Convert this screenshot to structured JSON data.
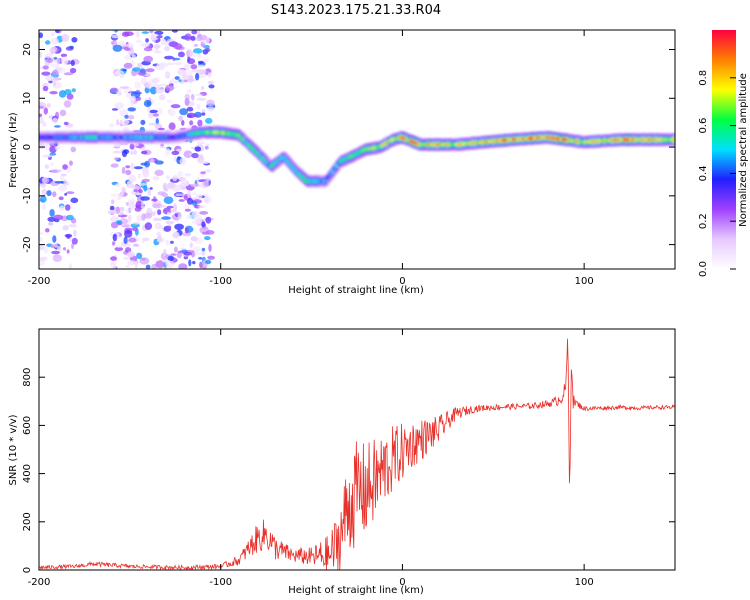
{
  "chart_data": [
    {
      "type": "heatmap",
      "title": "S143.2023.175.21.33.R04",
      "xlabel": "Height of straight line (km)",
      "ylabel": "Frequency (Hz)",
      "xlim": [
        -200,
        150
      ],
      "ylim": [
        -25,
        24
      ],
      "xticks": [
        -200,
        -100,
        0,
        100
      ],
      "yticks": [
        -20,
        -10,
        0,
        10,
        20
      ],
      "colorbar": {
        "label": "Normalized spectral amplitude",
        "range": [
          0,
          1
        ],
        "ticks": [
          0.0,
          0.2,
          0.4,
          0.6,
          0.8
        ],
        "colors": [
          "#ffffff",
          "#e6c8ff",
          "#a040ff",
          "#2020ff",
          "#00e0ff",
          "#00ff40",
          "#ffff00",
          "#ff8000",
          "#ff0040"
        ]
      },
      "trace": {
        "x": [
          -200,
          -185,
          -170,
          -155,
          -140,
          -125,
          -110,
          -100,
          -90,
          -80,
          -72,
          -65,
          -58,
          -52,
          -46,
          -42,
          -38,
          -34,
          -28,
          -20,
          -12,
          -5,
          0,
          10,
          30,
          60,
          80,
          90,
          100,
          120,
          150
        ],
        "freq": [
          2,
          2,
          2,
          2,
          2,
          2,
          3,
          3,
          2.5,
          -1,
          -4,
          -2,
          -5,
          -7,
          -7,
          -7,
          -5,
          -3,
          -2,
          -0.5,
          0,
          1.5,
          2,
          0.5,
          0.5,
          1.5,
          2,
          1.5,
          1,
          1.5,
          1.5
        ],
        "peak_amplitude": [
          0.3,
          0.4,
          0.5,
          0.35,
          0.5,
          0.3,
          0.6,
          0.7,
          0.6,
          0.55,
          0.5,
          0.5,
          0.5,
          0.5,
          0.45,
          0.4,
          0.45,
          0.5,
          0.55,
          0.6,
          0.7,
          0.75,
          0.8,
          0.85,
          0.7,
          0.9,
          0.85,
          0.9,
          0.7,
          0.85,
          0.7
        ]
      },
      "noise_bands": [
        [
          -200,
          -180
        ],
        [
          -160,
          -105
        ]
      ]
    },
    {
      "type": "line",
      "xlabel": "Height of straight line (km)",
      "ylabel": "SNR (10 * v/v)",
      "xlim": [
        -200,
        150
      ],
      "ylim": [
        0,
        1000
      ],
      "xticks": [
        -200,
        -100,
        0,
        100
      ],
      "yticks": [
        0,
        200,
        400,
        600,
        800
      ],
      "color": "#e8302a",
      "series": [
        {
          "name": "SNR",
          "x": [
            -200,
            -180,
            -170,
            -150,
            -120,
            -100,
            -90,
            -80,
            -75,
            -70,
            -60,
            -50,
            -40,
            -35,
            -30,
            -25,
            -20,
            -15,
            -10,
            -5,
            0,
            5,
            10,
            15,
            20,
            25,
            30,
            40,
            50,
            60,
            70,
            80,
            85,
            88,
            90,
            91,
            92,
            93,
            94,
            96,
            100,
            110,
            120,
            130,
            140,
            150
          ],
          "y": [
            10,
            15,
            25,
            15,
            10,
            15,
            40,
            130,
            150,
            90,
            60,
            55,
            60,
            120,
            260,
            320,
            330,
            370,
            420,
            460,
            490,
            520,
            540,
            560,
            580,
            620,
            650,
            670,
            675,
            678,
            680,
            690,
            700,
            720,
            760,
            990,
            290,
            860,
            700,
            690,
            670,
            672,
            675,
            672,
            675,
            675
          ],
          "amp": [
            8,
            8,
            10,
            8,
            8,
            10,
            20,
            60,
            70,
            50,
            30,
            40,
            90,
            140,
            200,
            220,
            200,
            180,
            160,
            140,
            120,
            100,
            90,
            70,
            60,
            40,
            25,
            15,
            12,
            12,
            12,
            15,
            20,
            30,
            30,
            0,
            0,
            0,
            30,
            15,
            10,
            8,
            8,
            8,
            8,
            8
          ]
        }
      ]
    }
  ]
}
